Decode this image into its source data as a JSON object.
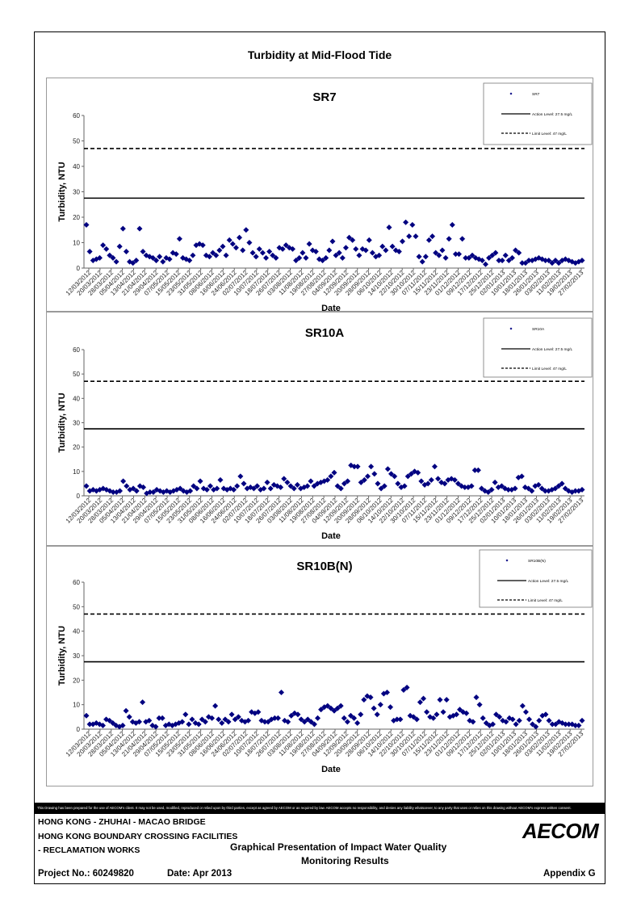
{
  "sheet": {
    "title": "Turbidity at Mid-Flood Tide",
    "disclaimer": "This Drawing has been prepared for the use of AECOM's client. It may not be used, modified, reproduced or relied upon by third parties, except as agreed by AECOM or as required by law. AECOM accepts no responsibility, and denies any liability whatsoever, to any party that uses or relies on this drawing without AECOM's express written consent.",
    "title_block": {
      "project_line1": "HONG KONG - ZHUHAI - MACAO BRIDGE",
      "project_line2": "HONG KONG BOUNDARY CROSSING FACILITIES",
      "project_line3": "- RECLAMATION WORKS",
      "drawing_title_line1": "Graphical Presentation of Impact Water Quality",
      "drawing_title_line2": "Monitoring Results",
      "project_no": "Project No.: 60249820",
      "date": "Date: Apr 2013",
      "appendix": "Appendix G",
      "logo": "AECOM"
    }
  },
  "chart_data": [
    {
      "type": "scatter",
      "title": "SR7",
      "xlabel": "Date",
      "ylabel": "Turbidity, NTU",
      "ylim": [
        0,
        60
      ],
      "yticks": [
        0,
        10,
        20,
        30,
        40,
        50,
        60
      ],
      "x_tick_labels": [
        "12/03/2012",
        "20/03/2012",
        "28/03/2012",
        "05/04/2012",
        "13/04/2012",
        "21/04/2012",
        "29/04/2012",
        "07/05/2012",
        "15/05/2012",
        "23/05/2012",
        "31/05/2012",
        "08/06/2012",
        "16/06/2012",
        "24/06/2012",
        "02/07/2012",
        "10/07/2012",
        "18/07/2012",
        "26/07/2012",
        "03/08/2012",
        "11/08/2012",
        "19/08/2012",
        "27/08/2012",
        "04/09/2012",
        "12/09/2012",
        "20/09/2012",
        "28/09/2012",
        "06/10/2012",
        "14/10/2012",
        "22/10/2012",
        "30/10/2012",
        "07/11/2012",
        "15/11/2012",
        "23/11/2012",
        "01/12/2012",
        "09/12/2012",
        "17/12/2012",
        "25/12/2012",
        "02/01/2013",
        "10/01/2013",
        "18/01/2013",
        "26/01/2013",
        "03/02/2013",
        "11/02/2013",
        "19/02/2013",
        "27/02/2013"
      ],
      "grid": false,
      "legend_position": "top-right",
      "series": [
        {
          "name": "SR7",
          "kind": "points",
          "color": "#000080",
          "values": [
            17,
            6.5,
            3,
            3.5,
            4,
            9,
            7.5,
            5,
            4,
            2.5,
            8.5,
            15.5,
            6.5,
            2.5,
            2,
            3,
            15.5,
            6.5,
            5,
            4.5,
            4,
            3,
            4.5,
            2.5,
            4,
            3.5,
            6,
            5.5,
            11.5,
            4,
            3.5,
            3,
            5,
            9,
            9.5,
            9,
            5,
            4.5,
            6,
            5,
            7,
            8.5,
            5,
            11,
            9.5,
            8,
            12,
            7,
            15,
            10,
            6,
            4.5,
            7.5,
            6,
            4,
            6.5,
            5,
            4,
            8,
            7.5,
            9,
            8,
            7.5,
            3,
            4,
            6,
            4,
            9.5,
            7,
            6.5,
            3.5,
            3,
            4,
            7,
            10.5,
            5,
            6,
            4,
            8,
            12,
            11,
            7.5,
            5,
            7.5,
            7,
            11,
            6,
            4.5,
            5,
            8.5,
            7,
            16,
            8.5,
            7,
            6.5,
            10.5,
            18,
            12.5,
            17,
            12.5,
            4.5,
            2.5,
            4.5,
            11,
            12.5,
            6,
            5,
            7,
            4,
            11.5,
            17,
            5.5,
            5.5,
            11.5,
            4,
            4,
            5,
            4,
            3.5,
            3,
            1.5,
            4,
            5,
            6,
            3,
            3,
            5,
            3,
            4,
            7,
            6,
            2,
            2,
            3,
            3,
            3.5,
            4,
            3.5,
            3,
            3,
            2,
            3,
            2,
            3,
            3.5,
            3,
            2.5,
            2,
            2.5,
            3
          ]
        },
        {
          "name": "Action Level: 27.5 mg/L",
          "kind": "hline",
          "y": 27.5,
          "dash": "solid"
        },
        {
          "name": "Limit Level: 47 mg/L",
          "kind": "hline",
          "y": 47,
          "dash": "dashed"
        }
      ]
    },
    {
      "type": "scatter",
      "title": "SR10A",
      "xlabel": "Date",
      "ylabel": "Turbidity, NTU",
      "ylim": [
        0,
        60
      ],
      "yticks": [
        0,
        10,
        20,
        30,
        40,
        50,
        60
      ],
      "x_tick_labels": [
        "12/03/2012",
        "20/03/2012",
        "28/03/2012",
        "05/04/2012",
        "13/04/2012",
        "21/04/2012",
        "29/04/2012",
        "07/05/2012",
        "15/05/2012",
        "23/05/2012",
        "31/05/2012",
        "08/06/2012",
        "16/06/2012",
        "24/06/2012",
        "02/07/2012",
        "10/07/2012",
        "18/07/2012",
        "26/07/2012",
        "03/08/2012",
        "11/08/2012",
        "19/08/2012",
        "27/08/2012",
        "04/09/2012",
        "12/09/2012",
        "20/09/2012",
        "28/09/2012",
        "06/10/2012",
        "14/10/2012",
        "22/10/2012",
        "30/10/2012",
        "07/11/2012",
        "15/11/2012",
        "23/11/2012",
        "01/12/2012",
        "09/12/2012",
        "17/12/2012",
        "25/12/2012",
        "02/01/2013",
        "10/01/2013",
        "18/01/2013",
        "26/01/2013",
        "03/02/2013",
        "11/02/2013",
        "19/02/2013",
        "27/02/2013"
      ],
      "grid": false,
      "legend_position": "top-right",
      "series": [
        {
          "name": "SR10A",
          "kind": "points",
          "color": "#000080",
          "values": [
            4,
            2,
            2.5,
            2,
            2.5,
            3,
            2.5,
            2,
            1.5,
            1.5,
            2,
            6,
            4,
            2.5,
            3,
            2,
            4,
            3.5,
            1,
            1.5,
            1.5,
            2.5,
            2,
            1.5,
            2,
            1.5,
            2,
            2.5,
            3,
            2,
            1.5,
            2,
            4,
            3,
            6,
            3,
            2.5,
            4,
            2.5,
            3,
            6.5,
            3,
            2.5,
            3,
            2.5,
            4,
            8,
            5,
            3,
            3.5,
            3,
            4,
            2.5,
            3,
            5.5,
            3,
            4.5,
            4,
            3.5,
            7,
            5.5,
            4,
            3,
            4.5,
            3,
            3.5,
            4,
            6,
            4,
            5,
            5.5,
            6,
            6.5,
            8,
            9.5,
            4,
            3,
            5,
            6,
            12.5,
            12,
            12,
            5.5,
            6.5,
            8,
            12,
            9,
            5,
            3,
            4,
            11,
            9,
            8,
            5,
            3.5,
            4,
            8,
            9,
            10,
            9.5,
            6,
            4.5,
            5,
            6.5,
            12,
            7,
            5.5,
            5,
            6.5,
            7,
            6.5,
            5,
            4,
            3.5,
            3.5,
            4,
            10.5,
            10.5,
            3,
            2,
            1.5,
            2.5,
            5.5,
            3.5,
            4,
            3,
            2.5,
            2.5,
            3,
            7.5,
            8,
            3.5,
            3,
            2,
            4,
            4.5,
            3,
            2,
            2,
            2.5,
            3,
            4,
            5,
            3,
            2,
            1.5,
            2,
            2,
            2.5
          ]
        },
        {
          "name": "Action Level: 27.5 mg/L",
          "kind": "hline",
          "y": 27.5,
          "dash": "solid"
        },
        {
          "name": "Limit Level: 47 mg/L",
          "kind": "hline",
          "y": 47,
          "dash": "dashed"
        }
      ]
    },
    {
      "type": "scatter",
      "title": "SR10B(N)",
      "xlabel": "Date",
      "ylabel": "Turbidity, NTU",
      "ylim": [
        0,
        60
      ],
      "yticks": [
        0,
        10,
        20,
        30,
        40,
        50,
        60
      ],
      "x_tick_labels": [
        "12/03/2012",
        "20/03/2012",
        "28/03/2012",
        "05/04/2012",
        "13/04/2012",
        "21/04/2012",
        "29/04/2012",
        "07/05/2012",
        "15/05/2012",
        "23/05/2012",
        "31/05/2012",
        "08/06/2012",
        "16/06/2012",
        "24/06/2012",
        "02/07/2012",
        "10/07/2012",
        "18/07/2012",
        "26/07/2012",
        "03/08/2012",
        "11/08/2012",
        "19/08/2012",
        "27/08/2012",
        "04/09/2012",
        "12/09/2012",
        "20/09/2012",
        "28/09/2012",
        "06/10/2012",
        "14/10/2012",
        "22/10/2012",
        "30/10/2012",
        "07/11/2012",
        "15/11/2012",
        "23/11/2012",
        "01/12/2012",
        "09/12/2012",
        "17/12/2012",
        "25/12/2012",
        "02/01/2013",
        "10/01/2013",
        "18/01/2013",
        "26/01/2013",
        "03/02/2013",
        "11/02/2013",
        "19/02/2013",
        "27/02/2013"
      ],
      "grid": false,
      "legend_position": "top-right",
      "series": [
        {
          "name": "SR10B(N)",
          "kind": "points",
          "color": "#000080",
          "values": [
            5.5,
            2,
            2,
            2.5,
            2,
            1.5,
            4,
            3.5,
            2.5,
            1.5,
            1,
            1.5,
            7.5,
            5,
            3,
            2.5,
            3,
            11,
            3,
            3.5,
            1.5,
            1,
            4.5,
            4.5,
            1.5,
            2,
            1.5,
            2,
            2.5,
            3,
            6,
            2,
            4,
            2.5,
            2,
            4,
            3,
            5,
            4.5,
            9.5,
            4,
            2.5,
            4,
            3,
            6,
            4,
            5,
            3.5,
            3,
            3.5,
            7,
            6.5,
            7,
            3.5,
            3,
            3,
            4,
            4.5,
            4.5,
            15,
            3.5,
            3,
            5.5,
            6.5,
            6,
            4,
            3,
            4,
            3,
            2,
            4.5,
            8,
            9,
            9.5,
            8.5,
            7.5,
            8.5,
            9.5,
            4.5,
            3,
            5.5,
            4.5,
            2.5,
            6,
            12,
            13.5,
            13,
            8.5,
            6,
            10,
            14.5,
            15,
            9,
            3.5,
            4,
            4,
            16,
            17,
            5.5,
            5,
            4,
            11,
            12.5,
            7,
            5,
            4.5,
            6,
            12,
            7,
            12,
            5,
            5.5,
            6,
            8,
            7,
            6.5,
            3.5,
            3,
            13,
            10,
            4.5,
            2.5,
            1.5,
            2,
            6,
            5,
            3.5,
            3,
            4.5,
            4,
            2,
            3.5,
            9.5,
            7,
            4,
            2,
            1,
            3.5,
            5.5,
            6,
            3.5,
            2,
            2,
            3,
            2.5,
            2,
            2,
            2,
            1.5,
            1.5,
            3.5
          ]
        },
        {
          "name": "Action Level: 27.5 mg/L",
          "kind": "hline",
          "y": 27.5,
          "dash": "solid"
        },
        {
          "name": "Limit Level: 47 mg/L",
          "kind": "hline",
          "y": 47,
          "dash": "dashed"
        }
      ]
    }
  ]
}
